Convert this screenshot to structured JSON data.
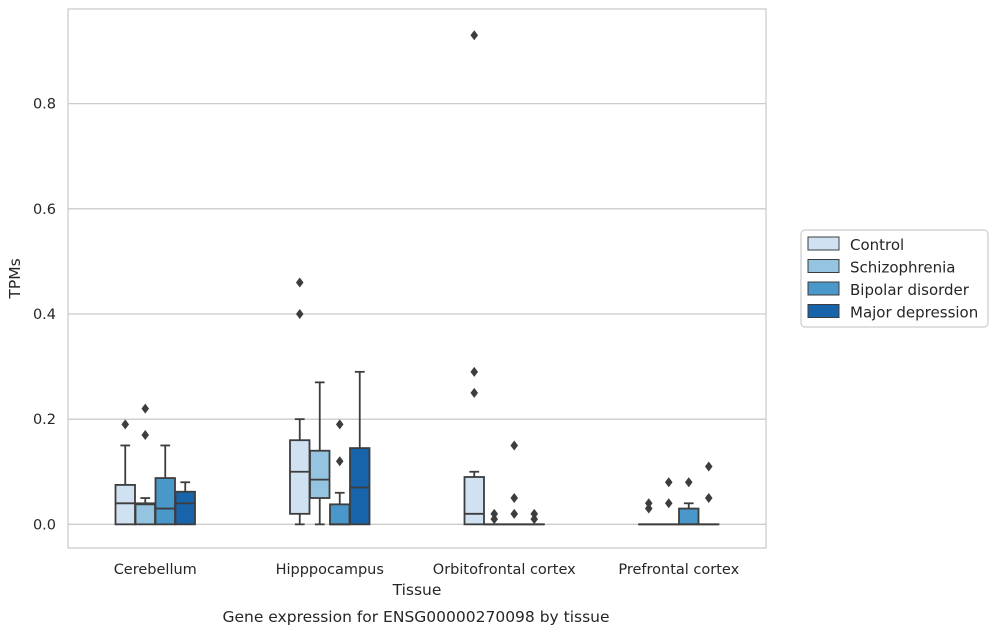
{
  "caption": "Gene expression for ENSG00000270098 by tissue",
  "chart_data": {
    "type": "box",
    "xlabel": "Tissue",
    "ylabel": "TPMs",
    "ylim": [
      -0.045,
      0.98
    ],
    "yticks": [
      0.0,
      0.2,
      0.4,
      0.6,
      0.8
    ],
    "ytick_labels": [
      "0.0",
      "0.2",
      "0.4",
      "0.6",
      "0.8"
    ],
    "grid": "horizontal",
    "legend_position": "right",
    "categories": [
      "Cerebellum",
      "Hipppocampus",
      "Orbitofrontal cortex",
      "Prefrontal cortex"
    ],
    "series": [
      {
        "name": "Control",
        "color": "#d0e1f2",
        "boxes": [
          {
            "q1": 0.0,
            "median": 0.04,
            "q3": 0.075,
            "whislo": 0.0,
            "whishi": 0.15,
            "fliers": [
              0.19
            ]
          },
          {
            "q1": 0.02,
            "median": 0.1,
            "q3": 0.16,
            "whislo": 0.0,
            "whishi": 0.2,
            "fliers": [
              0.4,
              0.46
            ]
          },
          {
            "q1": 0.0,
            "median": 0.02,
            "q3": 0.09,
            "whislo": 0.0,
            "whishi": 0.1,
            "fliers": [
              0.25,
              0.29,
              0.93
            ]
          },
          {
            "q1": 0.0,
            "median": 0.0,
            "q3": 0.0,
            "whislo": 0.0,
            "whishi": 0.0,
            "fliers": [
              0.03,
              0.04
            ]
          }
        ]
      },
      {
        "name": "Schizophrenia",
        "color": "#94c4df",
        "boxes": [
          {
            "q1": 0.0,
            "median": 0.038,
            "q3": 0.04,
            "whislo": 0.0,
            "whishi": 0.05,
            "fliers": [
              0.17,
              0.22
            ]
          },
          {
            "q1": 0.05,
            "median": 0.085,
            "q3": 0.14,
            "whislo": 0.0,
            "whishi": 0.27,
            "fliers": []
          },
          {
            "q1": 0.0,
            "median": 0.0,
            "q3": 0.0,
            "whislo": 0.0,
            "whishi": 0.0,
            "fliers": [
              0.01,
              0.02
            ]
          },
          {
            "q1": 0.0,
            "median": 0.0,
            "q3": 0.0,
            "whislo": 0.0,
            "whishi": 0.0,
            "fliers": [
              0.04,
              0.08
            ]
          }
        ]
      },
      {
        "name": "Bipolar disorder",
        "color": "#4a98c9",
        "boxes": [
          {
            "q1": 0.0,
            "median": 0.03,
            "q3": 0.088,
            "whislo": 0.0,
            "whishi": 0.15,
            "fliers": []
          },
          {
            "q1": 0.0,
            "median": 0.0,
            "q3": 0.038,
            "whislo": 0.0,
            "whishi": 0.06,
            "fliers": [
              0.12,
              0.19
            ]
          },
          {
            "q1": 0.0,
            "median": 0.0,
            "q3": 0.0,
            "whislo": 0.0,
            "whishi": 0.0,
            "fliers": [
              0.02,
              0.05,
              0.15
            ]
          },
          {
            "q1": 0.0,
            "median": 0.0,
            "q3": 0.03,
            "whislo": 0.0,
            "whishi": 0.04,
            "fliers": [
              0.08
            ]
          }
        ]
      },
      {
        "name": "Major depression",
        "color": "#1764ab",
        "boxes": [
          {
            "q1": 0.0,
            "median": 0.04,
            "q3": 0.062,
            "whislo": 0.0,
            "whishi": 0.08,
            "fliers": []
          },
          {
            "q1": 0.0,
            "median": 0.07,
            "q3": 0.145,
            "whislo": 0.0,
            "whishi": 0.29,
            "fliers": []
          },
          {
            "q1": 0.0,
            "median": 0.0,
            "q3": 0.0,
            "whislo": 0.0,
            "whishi": 0.0,
            "fliers": [
              0.01,
              0.02
            ]
          },
          {
            "q1": 0.0,
            "median": 0.0,
            "q3": 0.0,
            "whislo": 0.0,
            "whishi": 0.0,
            "fliers": [
              0.05,
              0.11
            ]
          }
        ]
      }
    ]
  }
}
